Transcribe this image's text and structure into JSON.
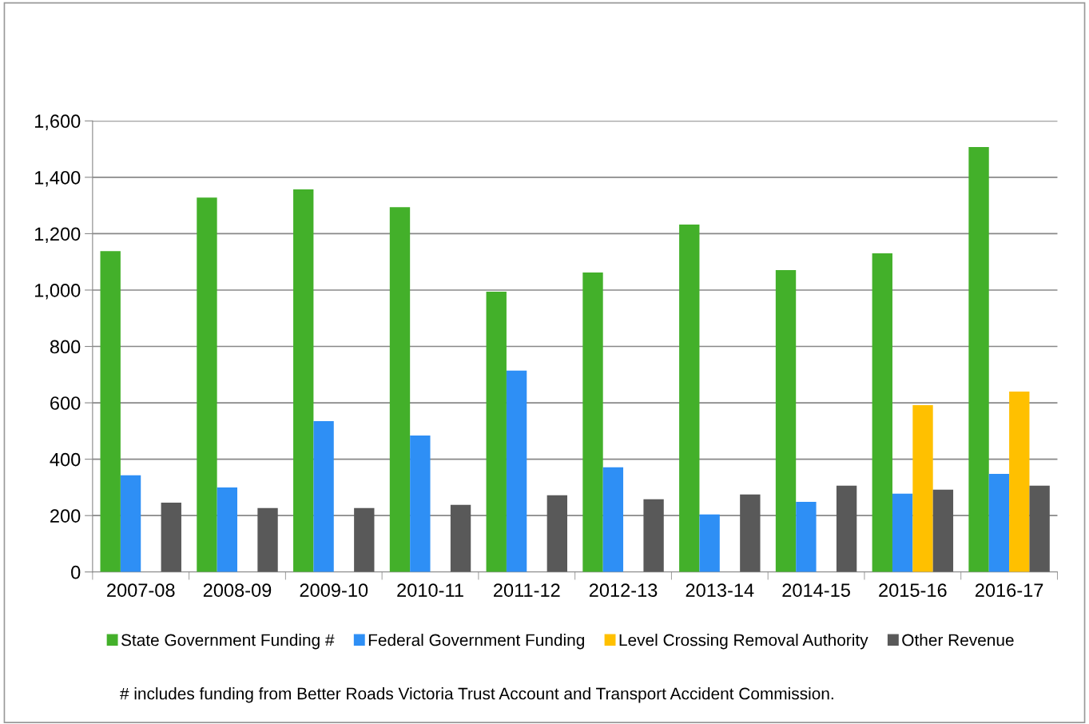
{
  "chart_data": {
    "type": "bar",
    "categories": [
      "2007-08",
      "2008-09",
      "2009-10",
      "2010-11",
      "2011-12",
      "2012-13",
      "2013-14",
      "2014-15",
      "2015-16",
      "2016-17"
    ],
    "series": [
      {
        "name": "State Government Funding #",
        "color": "#43b02a",
        "values": [
          1138,
          1328,
          1357,
          1294,
          994,
          1062,
          1232,
          1071,
          1130,
          1507
        ]
      },
      {
        "name": "Federal Government Funding",
        "color": "#2e8ff5",
        "values": [
          343,
          300,
          535,
          484,
          714,
          371,
          204,
          249,
          278,
          348
        ]
      },
      {
        "name": "Level Crossing Removal Authority",
        "color": "#ffc000",
        "values": [
          null,
          null,
          null,
          null,
          null,
          null,
          null,
          null,
          592,
          640
        ]
      },
      {
        "name": "Other Revenue",
        "color": "#595959",
        "values": [
          246,
          227,
          227,
          238,
          272,
          258,
          275,
          306,
          292,
          306
        ]
      }
    ],
    "ylim": [
      0,
      1600
    ],
    "yticks": [
      0,
      {
        "value": 200,
        "label": "200"
      },
      {
        "value": 400,
        "label": "400"
      },
      {
        "value": 600,
        "label": "600"
      },
      {
        "value": 800,
        "label": "800"
      },
      {
        "value": 1000,
        "label": "1,000"
      },
      {
        "value": 1200,
        "label": "1,200"
      },
      {
        "value": 1400,
        "label": "1,400"
      },
      {
        "value": 1600,
        "label": "1,600"
      }
    ],
    "grid": "y",
    "legend": "bottom",
    "annotations": [
      "# includes funding from Better Roads Victoria Trust Account and Transport Accident Commission."
    ]
  }
}
